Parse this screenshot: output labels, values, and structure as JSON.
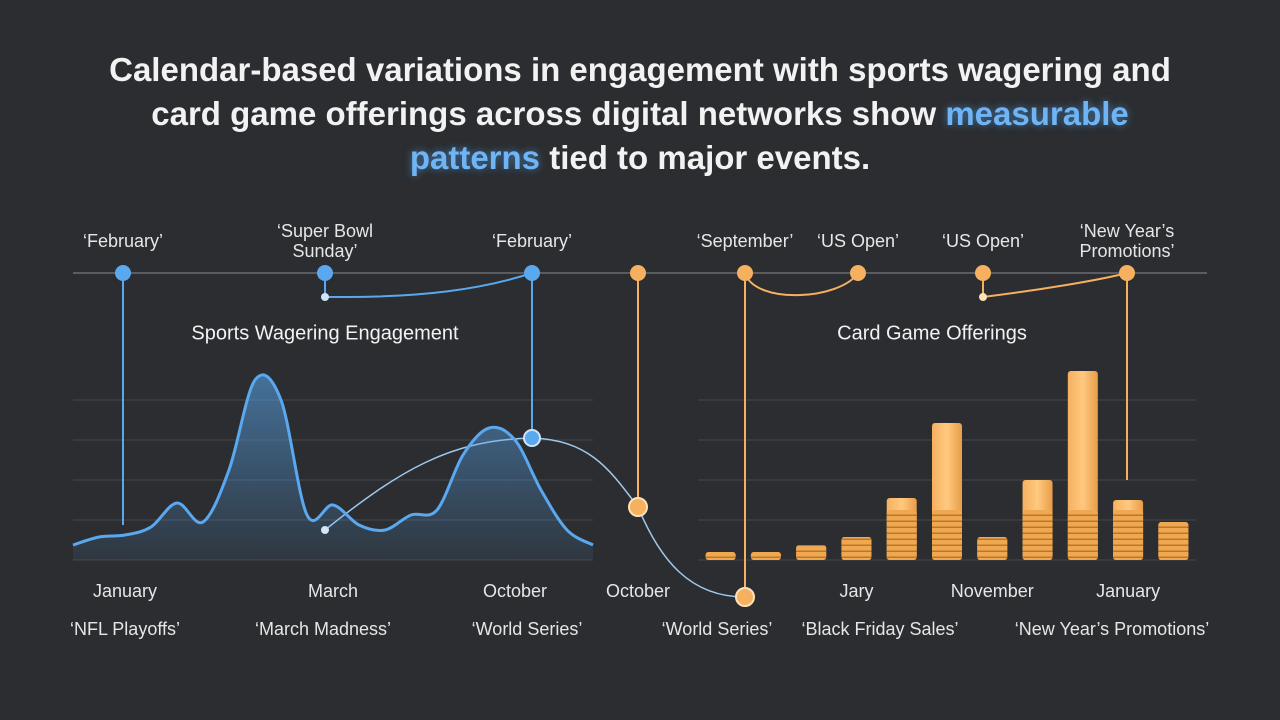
{
  "headline": {
    "before": "Calendar-based variations in engagement with sports wagering and card game offerings across digital networks show",
    "highlight": "measurable patterns",
    "after": "tied to major events."
  },
  "timeline": {
    "top_labels": [
      "‘February’",
      "‘Super Bowl Sunday’",
      "‘February’",
      "‘September’",
      "‘US Open’",
      "‘US Open’",
      "‘New Year’s Promotions’"
    ],
    "month_label": "October",
    "bottom_labels": [
      "‘NFL Playoffs’",
      "‘March Madness’",
      "‘World Series’",
      "‘World Series’",
      "‘Black Friday Sales’",
      "‘New Year’s Promotions’"
    ]
  },
  "chart_data": [
    {
      "type": "area",
      "title": "Sports Wagering Engagement",
      "color": "#5aa8f0",
      "ylim": [
        0,
        100
      ],
      "grid": true,
      "categories": [
        null,
        null,
        "January",
        null,
        null,
        null,
        null,
        null,
        null,
        null,
        "March",
        null,
        null,
        null,
        null,
        null,
        null,
        "October",
        null,
        null,
        null
      ],
      "values": [
        7.5,
        11.5,
        12.5,
        16.5,
        28.5,
        19,
        45,
        90,
        80,
        22.5,
        27.5,
        17.5,
        15,
        22.5,
        25,
        52.5,
        66,
        60,
        35,
        15,
        7.5
      ]
    },
    {
      "type": "bar",
      "title": "Card Game Offerings",
      "color": "#f5b060",
      "ylim": [
        0,
        100
      ],
      "grid": true,
      "categories": [
        null,
        null,
        null,
        "Jary",
        null,
        null,
        "November",
        null,
        null,
        "January",
        null
      ],
      "values": [
        4,
        4,
        7.5,
        11.5,
        31,
        68.5,
        11.5,
        40,
        94.5,
        30,
        19
      ]
    }
  ]
}
